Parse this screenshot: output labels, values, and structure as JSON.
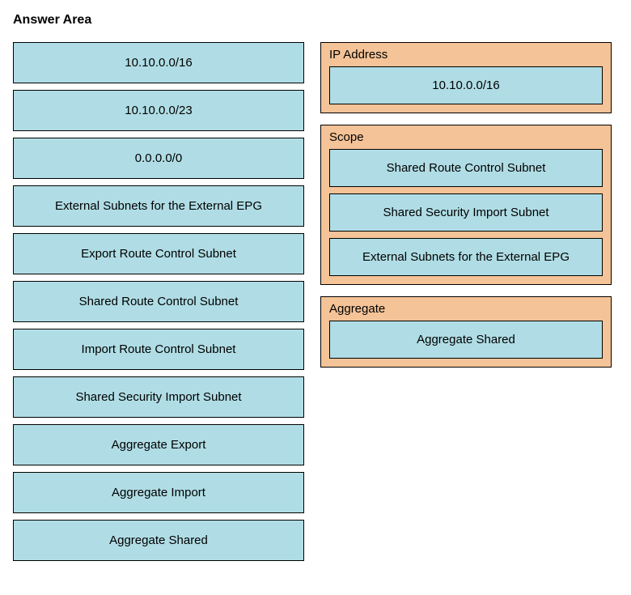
{
  "title": "Answer Area",
  "colors": {
    "item_bg": "#b0dde5",
    "zone_bg": "#f4c397",
    "border": "#000000",
    "page_bg": "#ffffff"
  },
  "source_items": [
    "10.10.0.0/16",
    "10.10.0.0/23",
    "0.0.0.0/0",
    "External Subnets for the External EPG",
    "Export Route Control Subnet",
    "Shared Route Control Subnet",
    "Import Route Control Subnet",
    "Shared Security Import Subnet",
    "Aggregate Export",
    "Aggregate Import",
    "Aggregate Shared"
  ],
  "drop_zones": [
    {
      "label": "IP Address",
      "items": [
        "10.10.0.0/16"
      ]
    },
    {
      "label": "Scope",
      "items": [
        "Shared Route Control Subnet",
        "Shared Security Import Subnet",
        "External Subnets for the External EPG"
      ]
    },
    {
      "label": "Aggregate",
      "items": [
        "Aggregate Shared"
      ]
    }
  ]
}
